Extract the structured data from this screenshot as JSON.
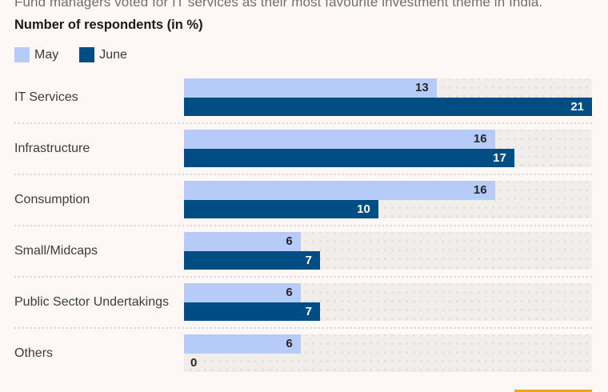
{
  "page": {
    "intro_text": "Fund managers voted for IT services as their most favourite investment theme in India.",
    "title": "Number of respondents (in %)",
    "background_color": "#fdf7f5"
  },
  "legend": {
    "items": [
      {
        "label": "May",
        "color": "#b6cbf7"
      },
      {
        "label": "June",
        "color": "#004d84"
      }
    ]
  },
  "chart_data": {
    "type": "bar",
    "orientation": "horizontal",
    "title": "Number of respondents (in %)",
    "categories": [
      "IT Services",
      "Infrastructure",
      "Consumption",
      "Small/Midcaps",
      "Public Sector Undertakings",
      "Others"
    ],
    "series": [
      {
        "name": "May",
        "color": "#b6cbf7",
        "value_label_color": "#262626",
        "values": [
          13,
          16,
          16,
          6,
          6,
          6
        ]
      },
      {
        "name": "June",
        "color": "#004d84",
        "value_label_color": "#ffffff",
        "values": [
          21,
          17,
          10,
          7,
          7,
          0
        ]
      }
    ],
    "xlim": [
      0,
      21
    ],
    "value_labels": true,
    "grid": false,
    "legend_position": "top-left",
    "track_color": "#f0edeb",
    "zero_label_color": "#262626"
  },
  "footer": {
    "accent_color": "#f6a11c"
  }
}
